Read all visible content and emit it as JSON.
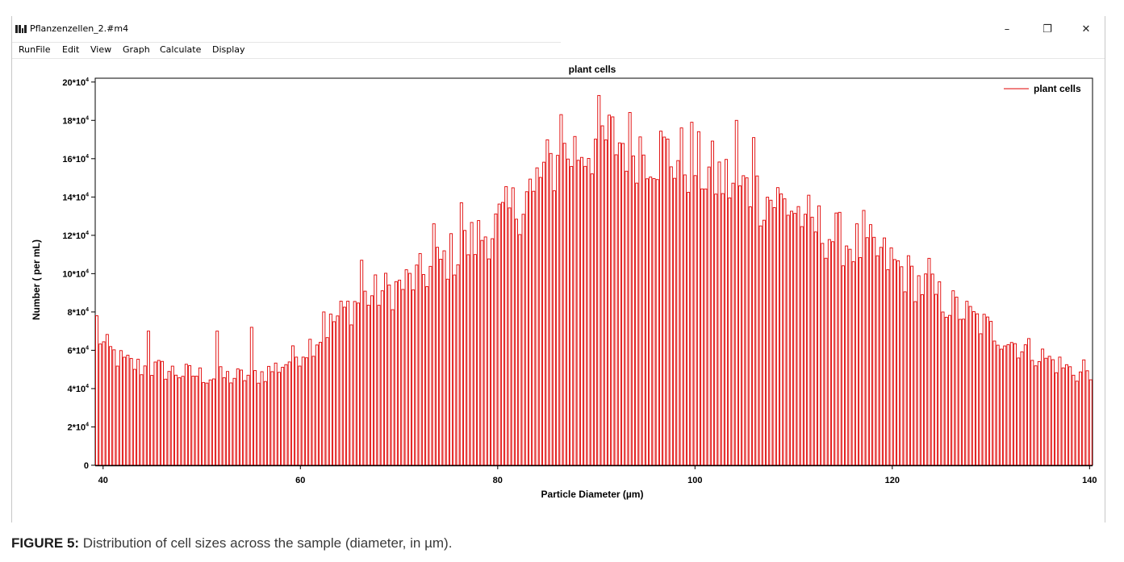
{
  "window": {
    "title": "Pflanzenzellen_2.#m4",
    "controls": {
      "minimize": "–",
      "restore": "❐",
      "close": "✕"
    }
  },
  "menu": {
    "items": [
      "RunFile",
      "Edit",
      "View",
      "Graph",
      "Calculate",
      "Display"
    ]
  },
  "caption": {
    "label": "FIGURE 5:",
    "text": "Distribution of cell sizes across the sample (diameter, in µm)."
  },
  "chart_data": {
    "type": "bar",
    "title": "plant cells",
    "xlabel": "Particle Diameter (µm)",
    "ylabel": "Number ( per mL)",
    "xlim": [
      39.2,
      140.3
    ],
    "ylim": [
      0,
      202000
    ],
    "x_ticks": [
      40,
      60,
      80,
      100,
      120,
      140
    ],
    "y_ticks": [
      {
        "value": 0,
        "label": "0"
      },
      {
        "value": 20000,
        "label": "2*10",
        "exp": "4"
      },
      {
        "value": 40000,
        "label": "4*10",
        "exp": "4"
      },
      {
        "value": 60000,
        "label": "6*10",
        "exp": "4"
      },
      {
        "value": 80000,
        "label": "8*10",
        "exp": "4"
      },
      {
        "value": 100000,
        "label": "10*10",
        "exp": "4"
      },
      {
        "value": 120000,
        "label": "12*10",
        "exp": "4"
      },
      {
        "value": 140000,
        "label": "14*10",
        "exp": "4"
      },
      {
        "value": 160000,
        "label": "16*10",
        "exp": "4"
      },
      {
        "value": 180000,
        "label": "18*10",
        "exp": "4"
      },
      {
        "value": 200000,
        "label": "20*10",
        "exp": "4"
      }
    ],
    "legend": {
      "position": "top-right",
      "entries": [
        "plant cells"
      ]
    },
    "series_color": "#e00000",
    "grid": false,
    "series": [
      {
        "name": "plant cells",
        "profile": [
          [
            39.2,
            75000
          ],
          [
            40,
            64000
          ],
          [
            42,
            55000
          ],
          [
            44,
            52000
          ],
          [
            46,
            51000
          ],
          [
            48,
            49000
          ],
          [
            50,
            48000
          ],
          [
            52,
            47000
          ],
          [
            54,
            47000
          ],
          [
            56,
            48500
          ],
          [
            58,
            53000
          ],
          [
            60,
            60000
          ],
          [
            62,
            69000
          ],
          [
            64,
            80000
          ],
          [
            66,
            88000
          ],
          [
            68,
            92000
          ],
          [
            70,
            95000
          ],
          [
            72,
            100000
          ],
          [
            74,
            107000
          ],
          [
            76,
            114000
          ],
          [
            78,
            121000
          ],
          [
            80,
            128000
          ],
          [
            82,
            138000
          ],
          [
            84,
            152000
          ],
          [
            86,
            162000
          ],
          [
            88,
            168000
          ],
          [
            90,
            172000
          ],
          [
            92,
            173000
          ],
          [
            94,
            171000
          ],
          [
            96,
            168000
          ],
          [
            98,
            164000
          ],
          [
            100,
            160000
          ],
          [
            102,
            154000
          ],
          [
            104,
            149000
          ],
          [
            106,
            145000
          ],
          [
            108,
            142000
          ],
          [
            110,
            137000
          ],
          [
            112,
            128000
          ],
          [
            114,
            122000
          ],
          [
            116,
            118000
          ],
          [
            118,
            114000
          ],
          [
            120,
            108000
          ],
          [
            122,
            100000
          ],
          [
            124,
            92000
          ],
          [
            126,
            85000
          ],
          [
            128,
            79000
          ],
          [
            130,
            72000
          ],
          [
            132,
            66000
          ],
          [
            134,
            61000
          ],
          [
            136,
            56000
          ],
          [
            138,
            51000
          ],
          [
            140.3,
            46000
          ]
        ],
        "peaks": [
          [
            39.2,
            78000
          ],
          [
            44.7,
            70000
          ],
          [
            51.6,
            70000
          ],
          [
            55.2,
            72000
          ],
          [
            62.5,
            80000
          ],
          [
            66.1,
            107000
          ],
          [
            73.6,
            126000
          ],
          [
            76.5,
            137000
          ],
          [
            83.6,
            143000
          ],
          [
            86.5,
            183000
          ],
          [
            90.2,
            193000
          ],
          [
            99.6,
            179000
          ],
          [
            104.2,
            180000
          ],
          [
            106.1,
            171000
          ],
          [
            111.2,
            131000
          ],
          [
            117.2,
            133000
          ],
          [
            123.6,
            108000
          ],
          [
            139.6,
            55000
          ]
        ]
      }
    ]
  }
}
